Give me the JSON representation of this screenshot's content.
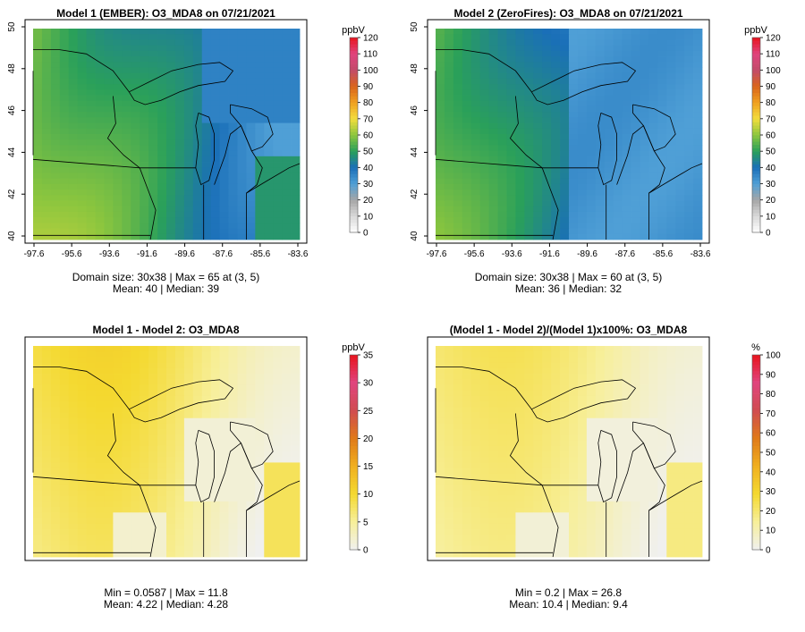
{
  "panels": [
    {
      "title": "Model 1 (EMBER): O3_MDA8 on 07/21/2021",
      "unit": "ppbV",
      "legend_ticks": [
        "120",
        "110",
        "100",
        "90",
        "80",
        "70",
        "60",
        "50",
        "40",
        "30",
        "20",
        "10",
        "0"
      ],
      "legend_scale": "ozone",
      "field": "ember",
      "show_axes": true,
      "stats_line1": "Domain size: 30x38 | Max = 65 at (3, 5)",
      "stats_line2": "Mean: 40 |  Median: 39"
    },
    {
      "title": "Model 2 (ZeroFires): O3_MDA8 on 07/21/2021",
      "unit": "ppbV",
      "legend_ticks": [
        "120",
        "110",
        "100",
        "90",
        "80",
        "70",
        "60",
        "50",
        "40",
        "30",
        "20",
        "10",
        "0"
      ],
      "legend_scale": "ozone",
      "field": "zerofires",
      "show_axes": true,
      "stats_line1": "Domain size: 30x38 | Max = 60 at (3, 5)",
      "stats_line2": "Mean: 36 |  Median: 32"
    },
    {
      "title": "Model 1 - Model 2: O3_MDA8",
      "unit": "ppbV",
      "legend_ticks": [
        "35",
        "30",
        "25",
        "20",
        "15",
        "10",
        "5",
        "0"
      ],
      "legend_scale": "diff",
      "field": "diff",
      "show_axes": false,
      "stats_line1": "Min = 0.0587 | Max = 11.8",
      "stats_line2": "Mean: 4.22 |  Median: 4.28"
    },
    {
      "title": "(Model 1 - Model 2)/(Model 1)x100%: O3_MDA8",
      "unit": "%",
      "legend_ticks": [
        "100",
        "90",
        "80",
        "70",
        "60",
        "50",
        "40",
        "30",
        "20",
        "10",
        "0"
      ],
      "legend_scale": "diff",
      "field": "pct",
      "show_axes": false,
      "stats_line1": "Min = 0.2 | Max = 26.8",
      "stats_line2": "Mean: 10.4 |  Median: 9.4"
    }
  ],
  "lat_ticks": [
    "50",
    "48",
    "46",
    "44",
    "42",
    "40"
  ],
  "lon_ticks": [
    "-97.6",
    "-95.6",
    "-93.6",
    "-91.6",
    "-89.6",
    "-87.6",
    "-85.6",
    "-83.6"
  ],
  "colors": {
    "ozone_scale": [
      "#ffffff",
      "#d9d9d9",
      "#a6a6a6",
      "#4f9fd6",
      "#1a6fb8",
      "#2aa05a",
      "#8cc63e",
      "#f2dd3d",
      "#f0a020",
      "#d9641c",
      "#c24b6a",
      "#e0447e",
      "#e8141e"
    ],
    "diff_scale": [
      "#f0f0f0",
      "#f7ef9a",
      "#f4d930",
      "#f0b020",
      "#e07a18",
      "#d04c50",
      "#e0447e",
      "#e8141e"
    ],
    "map_lines": "#000000",
    "frame": "#000000"
  }
}
